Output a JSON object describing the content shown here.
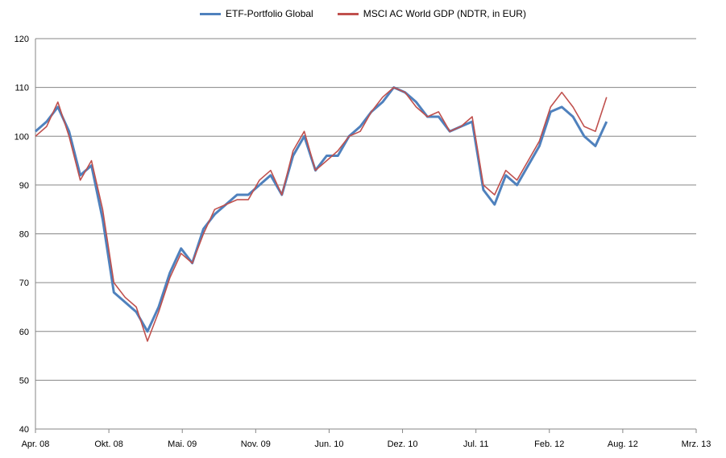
{
  "chart_data": {
    "type": "line",
    "title": "",
    "xlabel": "",
    "ylabel": "",
    "ylim": [
      40,
      120
    ],
    "y_ticks": [
      "40",
      "50",
      "60",
      "70",
      "80",
      "90",
      "100",
      "110",
      "120"
    ],
    "x_ticks": [
      "Apr. 08",
      "Okt. 08",
      "Mai. 09",
      "Nov. 09",
      "Jun. 10",
      "Dez. 10",
      "Jul. 11",
      "Feb. 12",
      "Aug. 12",
      "Mrz. 13"
    ],
    "grid": true,
    "legend_position": "top",
    "series": [
      {
        "name": "ETF-Portfolio Global",
        "color": "#4f81bd",
        "x": [
          "2008-04",
          "2008-05",
          "2008-06",
          "2008-07",
          "2008-08",
          "2008-09",
          "2008-10",
          "2008-11",
          "2008-12",
          "2009-01",
          "2009-02",
          "2009-03",
          "2009-04",
          "2009-05",
          "2009-06",
          "2009-07",
          "2009-08",
          "2009-09",
          "2009-10",
          "2009-11",
          "2009-12",
          "2010-01",
          "2010-02",
          "2010-03",
          "2010-04",
          "2010-05",
          "2010-06",
          "2010-07",
          "2010-08",
          "2010-09",
          "2010-10",
          "2010-11",
          "2010-12",
          "2011-01",
          "2011-02",
          "2011-03",
          "2011-04",
          "2011-05",
          "2011-06",
          "2011-07",
          "2011-08",
          "2011-09",
          "2011-10",
          "2011-11",
          "2011-12",
          "2012-01",
          "2012-02",
          "2012-03",
          "2012-04",
          "2012-05",
          "2012-06",
          "2012-07"
        ],
        "values": [
          101,
          103,
          106,
          101,
          92,
          94,
          83,
          68,
          66,
          64,
          60,
          65,
          72,
          77,
          74,
          81,
          84,
          86,
          88,
          88,
          90,
          92,
          88,
          96,
          100,
          93,
          96,
          96,
          100,
          102,
          105,
          107,
          110,
          109,
          107,
          104,
          104,
          101,
          102,
          103,
          89,
          86,
          92,
          90,
          94,
          98,
          105,
          106,
          104,
          100,
          98,
          103
        ]
      },
      {
        "name": "MSCI AC World GDP (NDTR, in EUR)",
        "color": "#c0504d",
        "x": [
          "2008-04",
          "2008-05",
          "2008-06",
          "2008-07",
          "2008-08",
          "2008-09",
          "2008-10",
          "2008-11",
          "2008-12",
          "2009-01",
          "2009-02",
          "2009-03",
          "2009-04",
          "2009-05",
          "2009-06",
          "2009-07",
          "2009-08",
          "2009-09",
          "2009-10",
          "2009-11",
          "2009-12",
          "2010-01",
          "2010-02",
          "2010-03",
          "2010-04",
          "2010-05",
          "2010-06",
          "2010-07",
          "2010-08",
          "2010-09",
          "2010-10",
          "2010-11",
          "2010-12",
          "2011-01",
          "2011-02",
          "2011-03",
          "2011-04",
          "2011-05",
          "2011-06",
          "2011-07",
          "2011-08",
          "2011-09",
          "2011-10",
          "2011-11",
          "2011-12",
          "2012-01",
          "2012-02",
          "2012-03",
          "2012-04",
          "2012-05",
          "2012-06",
          "2012-07"
        ],
        "values": [
          100,
          102,
          107,
          100,
          91,
          95,
          85,
          70,
          67,
          65,
          58,
          64,
          71,
          76,
          74,
          80,
          85,
          86,
          87,
          87,
          91,
          93,
          88,
          97,
          101,
          93,
          95,
          97,
          100,
          101,
          105,
          108,
          110,
          109,
          106,
          104,
          105,
          101,
          102,
          104,
          90,
          88,
          93,
          91,
          95,
          99,
          106,
          109,
          106,
          102,
          101,
          108
        ]
      }
    ]
  }
}
